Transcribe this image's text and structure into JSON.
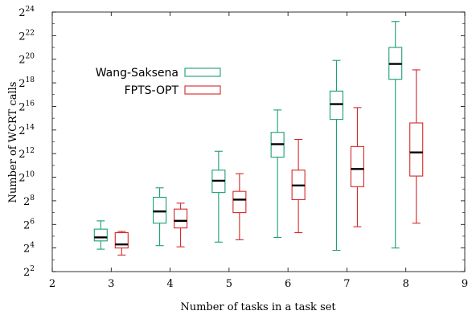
{
  "chart_data": {
    "type": "box",
    "xlabel": "Number of tasks in a task set",
    "ylabel": "Number of WCRT calls",
    "xlim": [
      2,
      9
    ],
    "x_ticks": [
      2,
      3,
      4,
      5,
      6,
      7,
      8,
      9
    ],
    "y_scale": "log2",
    "ylim_exponent": [
      2,
      24
    ],
    "y_tick_exponents": [
      2,
      4,
      6,
      8,
      10,
      12,
      14,
      16,
      18,
      20,
      22,
      24
    ],
    "y_tick_base": "2",
    "legend_position": "upper-left",
    "series": [
      {
        "name": "Wang-Saksena",
        "color": "#1a9e77",
        "boxes": [
          {
            "x": 3,
            "min_exp": 3.9,
            "q1_exp": 4.6,
            "median_exp": 4.9,
            "q3_exp": 5.6,
            "max_exp": 6.3
          },
          {
            "x": 4,
            "min_exp": 4.2,
            "q1_exp": 6.1,
            "median_exp": 7.1,
            "q3_exp": 8.3,
            "max_exp": 9.1
          },
          {
            "x": 5,
            "min_exp": 4.5,
            "q1_exp": 8.7,
            "median_exp": 9.7,
            "q3_exp": 10.6,
            "max_exp": 12.2
          },
          {
            "x": 6,
            "min_exp": 4.9,
            "q1_exp": 11.7,
            "median_exp": 12.8,
            "q3_exp": 13.8,
            "max_exp": 15.7
          },
          {
            "x": 7,
            "min_exp": 3.8,
            "q1_exp": 14.9,
            "median_exp": 16.2,
            "q3_exp": 17.3,
            "max_exp": 19.9
          },
          {
            "x": 8,
            "min_exp": 4.0,
            "q1_exp": 18.3,
            "median_exp": 19.6,
            "q3_exp": 21.0,
            "max_exp": 23.2
          }
        ]
      },
      {
        "name": "FPTS-OPT",
        "color": "#d62728",
        "boxes": [
          {
            "x": 3,
            "min_exp": 3.4,
            "q1_exp": 4.0,
            "median_exp": 4.3,
            "q3_exp": 5.3,
            "max_exp": 5.4
          },
          {
            "x": 4,
            "min_exp": 4.1,
            "q1_exp": 5.7,
            "median_exp": 6.3,
            "q3_exp": 7.3,
            "max_exp": 7.8
          },
          {
            "x": 5,
            "min_exp": 4.7,
            "q1_exp": 7.0,
            "median_exp": 8.1,
            "q3_exp": 8.8,
            "max_exp": 10.3
          },
          {
            "x": 6,
            "min_exp": 5.3,
            "q1_exp": 8.1,
            "median_exp": 9.3,
            "q3_exp": 10.6,
            "max_exp": 13.2
          },
          {
            "x": 7,
            "min_exp": 5.8,
            "q1_exp": 9.2,
            "median_exp": 10.7,
            "q3_exp": 12.6,
            "max_exp": 15.9
          },
          {
            "x": 8,
            "min_exp": 6.1,
            "q1_exp": 10.1,
            "median_exp": 12.1,
            "q3_exp": 14.6,
            "max_exp": 19.1
          }
        ]
      }
    ]
  }
}
